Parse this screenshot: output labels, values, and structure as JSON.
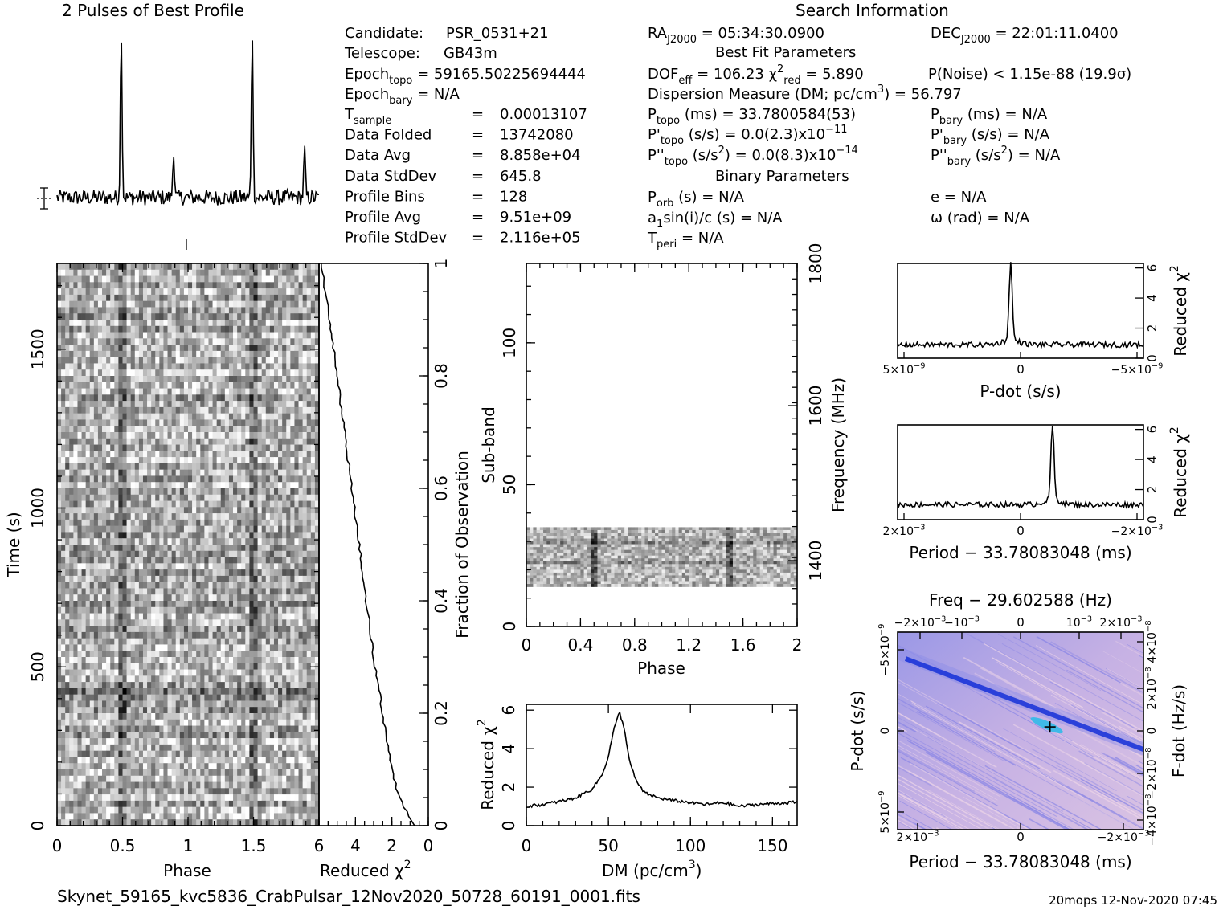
{
  "title_left": "2 Pulses of Best Profile",
  "title_right": "Search Information",
  "footer_file": "Skynet_59165_kvc5836_CrabPulsar_12Nov2020_50728_60191_0001.fits",
  "footer_stamp": "20mops  12-Nov-2020  07:45",
  "info": {
    "candidate_label": "Candidate:",
    "candidate": "PSR_0531+21",
    "telescope_label": "Telescope:",
    "telescope": "GB43m",
    "epoch_topo": "59165.50225694444",
    "epoch_bary": "N/A",
    "rows": [
      {
        "label": "T",
        "sub": "sample",
        "value": "0.00013107"
      },
      {
        "label": "Data Folded",
        "sub": "",
        "value": "13742080"
      },
      {
        "label": "Data Avg",
        "sub": "",
        "value": "8.858e+04"
      },
      {
        "label": "Data StdDev",
        "sub": "",
        "value": "645.8"
      },
      {
        "label": "Profile Bins",
        "sub": "",
        "value": "128"
      },
      {
        "label": "Profile Avg",
        "sub": "",
        "value": "9.51e+09"
      },
      {
        "label": "Profile StdDev",
        "sub": "",
        "value": "2.116e+05"
      }
    ],
    "ra": "05:34:30.0900",
    "dec": "22:01:11.0400",
    "best_fit_header": "Best Fit Parameters",
    "dof_eff": "106.23",
    "chi2_red": "5.890",
    "p_noise": "P(Noise) < 1.15e-88   (19.9σ)",
    "dm_line_pre": "Dispersion Measure (DM; pc/cm",
    "dm_line_post": ") = 56.797",
    "p_topo": "33.7800584(53)",
    "pdot_topo": "0.0(2.3)x10",
    "pdot_topo_exp": "−11",
    "pddot_topo": "0.0(8.3)x10",
    "pddot_topo_exp": "−14",
    "p_bary": "N/A",
    "pdot_bary": "N/A",
    "pddot_bary": "N/A",
    "binary_header": "Binary Parameters",
    "p_orb": "N/A",
    "a1sini": "N/A",
    "t_peri": "N/A",
    "ecc": "N/A",
    "omega": "N/A"
  },
  "chart_data": [
    {
      "id": "profile",
      "type": "line",
      "title": "2 Pulses of Best Profile",
      "x_range": [
        0,
        2
      ],
      "peaks": [
        {
          "phase": 0.49,
          "height": 1.0
        },
        {
          "phase": 1.49,
          "height": 1.0
        },
        {
          "phase": 0.89,
          "height": 0.28
        },
        {
          "phase": 1.89,
          "height": 0.28
        }
      ]
    },
    {
      "id": "time_phase",
      "type": "heatmap",
      "xlabel": "Phase",
      "ylabel": "Time (s)",
      "xlim": [
        0,
        2
      ],
      "ylim": [
        0,
        1770
      ],
      "xticks": [
        "0",
        "0.5",
        "1",
        "1.5"
      ],
      "yticks": [
        "0",
        "500",
        "1000",
        "1500"
      ],
      "pulse_phases": [
        0.49,
        1.49
      ]
    },
    {
      "id": "redchi_time",
      "type": "line",
      "xlabel": "Reduced χ",
      "xlim": [
        6,
        0
      ],
      "xticks": [
        "6",
        "4",
        "2",
        "0"
      ],
      "ylabel_right": "Fraction of Observation",
      "yticks_right": [
        "0",
        "0.2",
        "0.4",
        "0.6",
        "0.8",
        "1"
      ],
      "fraction": [
        0,
        0.05,
        0.1,
        0.2,
        0.3,
        0.4,
        0.5,
        0.6,
        0.7,
        0.8,
        0.9,
        1.0
      ],
      "redchi": [
        0.8,
        1.6,
        2.0,
        2.5,
        3.0,
        3.4,
        3.8,
        4.2,
        4.6,
        5.0,
        5.4,
        5.9
      ]
    },
    {
      "id": "subband_phase",
      "type": "heatmap",
      "xlabel": "Phase",
      "ylabel": "Sub-band",
      "ylabel_right": "Frequency (MHz)",
      "xlim": [
        0,
        2
      ],
      "ylim": [
        0,
        128
      ],
      "xticks": [
        "0",
        "0.4",
        "0.8",
        "1.2",
        "1.6",
        "2"
      ],
      "yticks": [
        "0",
        "50",
        "100"
      ],
      "yticks_right": [
        "1400",
        "1600",
        "1800"
      ],
      "data_band": [
        14,
        35
      ]
    },
    {
      "id": "dm_chi",
      "type": "line",
      "xlabel": "DM (pc/cm",
      "ylabel": "Reduced χ",
      "xlim": [
        0,
        165
      ],
      "ylim": [
        0,
        6.3
      ],
      "xticks": [
        "0",
        "50",
        "100",
        "150"
      ],
      "yticks": [
        "0",
        "2",
        "4",
        "6"
      ],
      "x": [
        0,
        10,
        20,
        30,
        40,
        46,
        50,
        53,
        56.8,
        60,
        63,
        67,
        72,
        80,
        90,
        100,
        110,
        120,
        130,
        140,
        150,
        160,
        165
      ],
      "y": [
        1.0,
        1.1,
        1.25,
        1.45,
        1.9,
        2.6,
        3.6,
        4.9,
        5.9,
        4.9,
        3.3,
        2.3,
        1.7,
        1.45,
        1.3,
        1.2,
        1.1,
        1.2,
        1.0,
        1.1,
        1.15,
        1.2,
        1.2
      ]
    },
    {
      "id": "pdot_chi",
      "type": "line",
      "xlabel": "P-dot (s/s)",
      "ylabel": "Reduced χ",
      "xticks": [
        "5×10",
        "0",
        "−5×10"
      ],
      "tick_exp": "−9",
      "yticks": [
        "0",
        "2",
        "4",
        "6"
      ],
      "ylim": [
        0,
        6.3
      ],
      "peak_pos": 0.46,
      "peak": 6.0,
      "base": 0.9
    },
    {
      "id": "period_chi",
      "type": "line",
      "xlabel": "Period − 33.78083048 (ms)",
      "ylabel": "Reduced χ",
      "xticks": [
        "2×10",
        "0",
        "−2×10"
      ],
      "tick_exp": "−3",
      "yticks": [
        "0",
        "2",
        "4",
        "6"
      ],
      "ylim": [
        0,
        6.3
      ],
      "peak_pos": 0.63,
      "peak": 6.0,
      "base": 1.0
    },
    {
      "id": "pp_dot",
      "type": "heatmap",
      "title_top": "Freq − 29.602588 (Hz)",
      "xlabel": "Period − 33.78083048 (ms)",
      "ylabel": "P-dot (s/s)",
      "ylabel_right": "F-dot (Hz/s)",
      "xticks_bottom": [
        "2×10",
        "0",
        "−2×10"
      ],
      "xticks_top": [
        "−2×10",
        "−10",
        "0",
        "10",
        "2×10"
      ],
      "yticks_left": [
        "−5×10",
        "0",
        "5×10"
      ],
      "yticks_right": [
        "4×10",
        "2×10",
        "0",
        "−2×10",
        "−4×10"
      ],
      "colors": {
        "low": "#e9cbe2",
        "mid": "#8f8fe8",
        "high": "#1530d8",
        "peak": "#3fb9e8"
      },
      "best": [
        0.62,
        0.48
      ]
    }
  ]
}
